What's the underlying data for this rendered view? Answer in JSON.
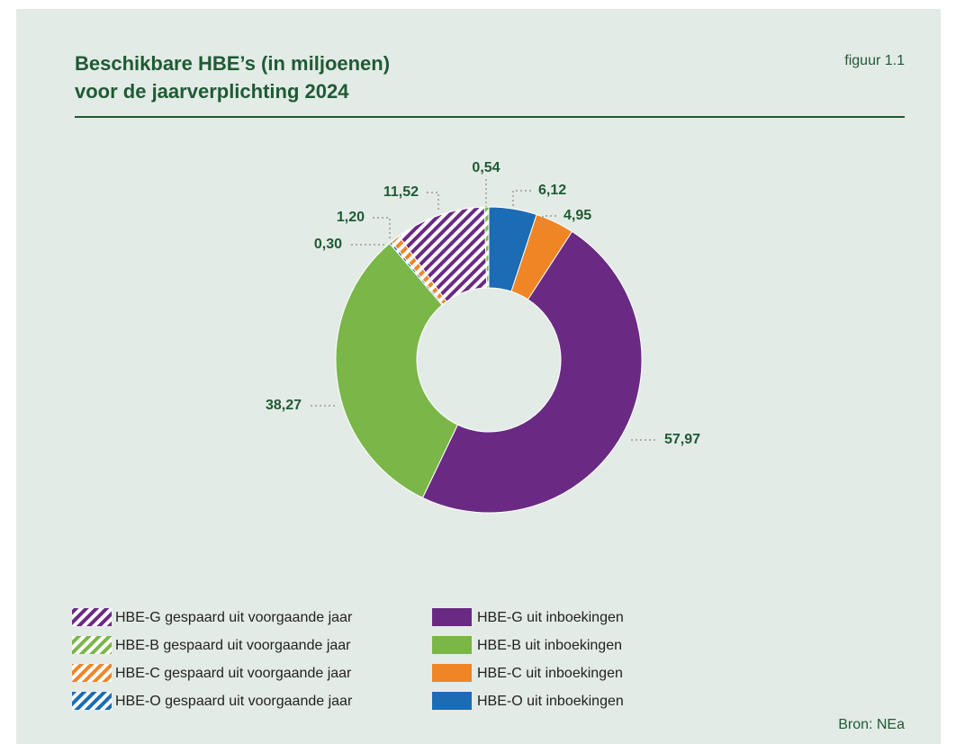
{
  "chart_data": {
    "type": "donut",
    "title": [
      "Beschikbare HBE’s (in miljoenen)",
      "voor de jaarverplichting 2024"
    ],
    "figure_label": "figuur 1.1",
    "source": "Bron: NEa",
    "categories": [
      "HBE-O uit inboekingen",
      "HBE-C uit inboekingen",
      "HBE-G uit inboekingen",
      "HBE-B uit inboekingen",
      "HBE-O gespaard uit voorgaande jaar",
      "HBE-C gespaard uit voorgaande jaar",
      "HBE-G gespaard uit voorgaande jaar",
      "HBE-B gespaard uit voorgaande jaar"
    ],
    "values": [
      6.12,
      4.95,
      57.97,
      38.27,
      0.3,
      1.2,
      11.52,
      0.54
    ],
    "value_labels": [
      "6,12",
      "4,95",
      "57,97",
      "38,27",
      "0,30",
      "1,20",
      "11,52",
      "0,54"
    ],
    "colors": [
      "#1b6bb5",
      "#f08526",
      "#6a2a84",
      "#7ab648",
      "#1b6bb5",
      "#f08526",
      "#6a2a84",
      "#7ab648"
    ],
    "patterns": [
      "solid",
      "solid",
      "solid",
      "solid",
      "hatched",
      "hatched",
      "hatched",
      "hatched"
    ]
  }
}
